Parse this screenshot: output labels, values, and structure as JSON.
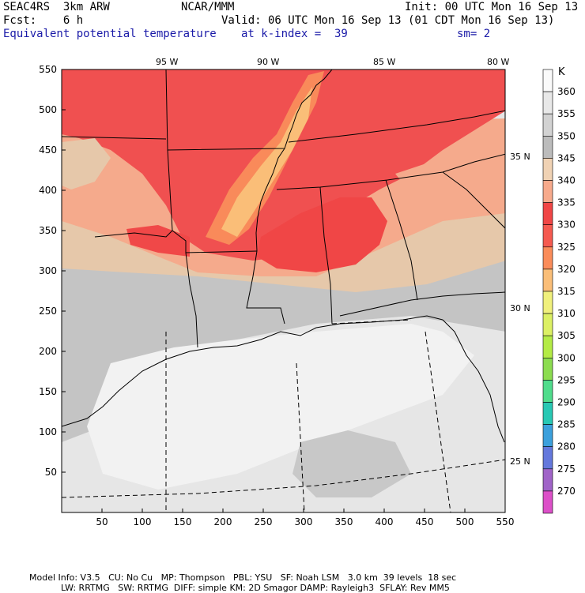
{
  "header": {
    "model": "SEAC4RS  3km ARW",
    "org": "NCAR/MMM",
    "init": "Init: 00 UTC Mon 16 Sep 13",
    "fcst": "Fcst:    6 h",
    "valid": "Valid: 06 UTC Mon 16 Sep 13 (01 CDT Mon 16 Sep 13)",
    "field": "Equivalent potential temperature",
    "level": "at k-index =  39",
    "smooth": "sm= 2"
  },
  "axes": {
    "x_ticks": [
      "50",
      "100",
      "150",
      "200",
      "250",
      "300",
      "350",
      "400",
      "450",
      "500",
      "550"
    ],
    "y_ticks": [
      "550",
      "500",
      "450",
      "400",
      "350",
      "300",
      "250",
      "200",
      "150",
      "100",
      "50"
    ],
    "lon_labels": [
      "95 W",
      "90 W",
      "85 W",
      "80 W"
    ],
    "lat_labels": [
      "35 N",
      "30 N",
      "25 N"
    ]
  },
  "legend": {
    "unit": "K",
    "levels": [
      "360",
      "355",
      "350",
      "345",
      "340",
      "335",
      "330",
      "325",
      "320",
      "315",
      "310",
      "305",
      "300",
      "295",
      "290",
      "285",
      "280",
      "275",
      "270"
    ],
    "colors": [
      "#fafafa",
      "#e8e8e8",
      "#d2d2d2",
      "#bcbcbc",
      "#f0d2b4",
      "#f7aa8c",
      "#f04646",
      "#f55a50",
      "#fa8c5a",
      "#fabe78",
      "#f0f07c",
      "#dcf064",
      "#b4eb46",
      "#8cdc50",
      "#50dc8c",
      "#28c8b4",
      "#3ca0dc",
      "#6478dc",
      "#a064c8",
      "#dc50c8"
    ]
  },
  "footer": {
    "line1": [
      "Model Info: V3.5",
      "CU: No Cu",
      "MP: Thompson",
      "PBL: YSU",
      "SF: Noah LSM",
      "3.0 km",
      "39 levels",
      "18 sec"
    ],
    "line2": [
      "LW: RRTMG",
      "SW: RRTMG",
      "DIFF: simple",
      "KM: 2D Smagor",
      "DAMP: Rayleigh3",
      "SFLAY: Rev MM5"
    ]
  }
}
